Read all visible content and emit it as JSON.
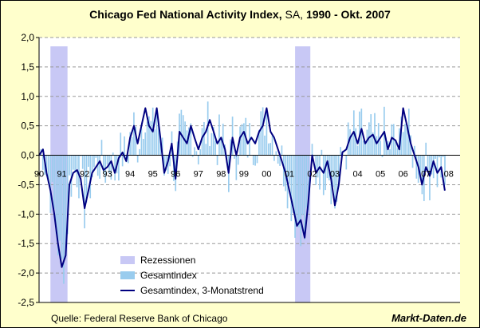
{
  "chart_data": {
    "type": "bar+line",
    "title_parts": [
      "Chicago Fed National Activity Index,",
      " SA,",
      " 1990 - Okt. 2007"
    ],
    "ylim": [
      -2.5,
      2.0
    ],
    "yticks": [
      "2,0",
      "1,5",
      "1,0",
      "0,5",
      "0,0",
      "-0,5",
      "-1,0",
      "-1,5",
      "-2,0",
      "-2,5"
    ],
    "ytick_values": [
      2.0,
      1.5,
      1.0,
      0.5,
      0.0,
      -0.5,
      -1.0,
      -1.5,
      -2.0,
      -2.5
    ],
    "xlim": [
      1990.0,
      2008.5
    ],
    "xtick_labels": [
      "90",
      "91",
      "92",
      "93",
      "94",
      "95",
      "96",
      "97",
      "98",
      "99",
      "00",
      "01",
      "02",
      "03",
      "04",
      "05",
      "06",
      "07",
      "08"
    ],
    "xtick_years": [
      1990,
      1991,
      1992,
      1993,
      1994,
      1995,
      1996,
      1997,
      1998,
      1999,
      2000,
      2001,
      2002,
      2003,
      2004,
      2005,
      2006,
      2007,
      2008
    ],
    "recessions": [
      [
        1990.5,
        1991.25
      ],
      [
        2001.25,
        2001.92
      ]
    ],
    "trend": [
      [
        1990.0,
        0.0
      ],
      [
        1990.17,
        0.1
      ],
      [
        1990.33,
        -0.3
      ],
      [
        1990.5,
        -0.6
      ],
      [
        1990.67,
        -1.0
      ],
      [
        1990.83,
        -1.5
      ],
      [
        1991.0,
        -1.9
      ],
      [
        1991.17,
        -1.7
      ],
      [
        1991.33,
        -0.5
      ],
      [
        1991.5,
        -0.3
      ],
      [
        1991.67,
        -0.25
      ],
      [
        1991.83,
        -0.4
      ],
      [
        1992.0,
        -0.9
      ],
      [
        1992.17,
        -0.6
      ],
      [
        1992.33,
        -0.3
      ],
      [
        1992.5,
        -0.2
      ],
      [
        1992.67,
        -0.1
      ],
      [
        1992.83,
        -0.25
      ],
      [
        1993.0,
        -0.2
      ],
      [
        1993.17,
        -0.1
      ],
      [
        1993.33,
        -0.3
      ],
      [
        1993.5,
        -0.05
      ],
      [
        1993.67,
        0.05
      ],
      [
        1993.83,
        -0.1
      ],
      [
        1994.0,
        0.3
      ],
      [
        1994.17,
        0.5
      ],
      [
        1994.33,
        0.2
      ],
      [
        1994.5,
        0.5
      ],
      [
        1994.67,
        0.8
      ],
      [
        1994.83,
        0.5
      ],
      [
        1995.0,
        0.4
      ],
      [
        1995.17,
        0.8
      ],
      [
        1995.33,
        0.3
      ],
      [
        1995.5,
        -0.3
      ],
      [
        1995.67,
        -0.1
      ],
      [
        1995.83,
        0.2
      ],
      [
        1996.0,
        -0.4
      ],
      [
        1996.17,
        0.4
      ],
      [
        1996.33,
        0.3
      ],
      [
        1996.5,
        0.2
      ],
      [
        1996.67,
        0.5
      ],
      [
        1996.83,
        0.3
      ],
      [
        1997.0,
        0.1
      ],
      [
        1997.17,
        0.3
      ],
      [
        1997.33,
        0.4
      ],
      [
        1997.5,
        0.6
      ],
      [
        1997.67,
        0.4
      ],
      [
        1997.83,
        0.2
      ],
      [
        1998.0,
        0.3
      ],
      [
        1998.17,
        0.1
      ],
      [
        1998.33,
        -0.3
      ],
      [
        1998.5,
        0.3
      ],
      [
        1998.67,
        0.0
      ],
      [
        1998.83,
        0.3
      ],
      [
        1999.0,
        0.4
      ],
      [
        1999.17,
        0.2
      ],
      [
        1999.33,
        0.3
      ],
      [
        1999.5,
        0.2
      ],
      [
        1999.67,
        0.4
      ],
      [
        1999.83,
        0.5
      ],
      [
        2000.0,
        0.8
      ],
      [
        2000.17,
        0.4
      ],
      [
        2000.33,
        0.3
      ],
      [
        2000.5,
        0.1
      ],
      [
        2000.67,
        -0.1
      ],
      [
        2000.83,
        -0.3
      ],
      [
        2001.0,
        -0.6
      ],
      [
        2001.17,
        -0.9
      ],
      [
        2001.33,
        -1.2
      ],
      [
        2001.5,
        -1.1
      ],
      [
        2001.67,
        -1.4
      ],
      [
        2001.83,
        -0.8
      ],
      [
        2002.0,
        0.0
      ],
      [
        2002.17,
        -0.3
      ],
      [
        2002.33,
        -0.2
      ],
      [
        2002.5,
        -0.3
      ],
      [
        2002.67,
        -0.1
      ],
      [
        2002.83,
        -0.4
      ],
      [
        2003.0,
        -0.85
      ],
      [
        2003.17,
        -0.5
      ],
      [
        2003.33,
        0.05
      ],
      [
        2003.5,
        0.1
      ],
      [
        2003.67,
        0.3
      ],
      [
        2003.83,
        0.4
      ],
      [
        2004.0,
        0.2
      ],
      [
        2004.17,
        0.45
      ],
      [
        2004.33,
        0.2
      ],
      [
        2004.5,
        0.3
      ],
      [
        2004.67,
        0.35
      ],
      [
        2004.83,
        0.2
      ],
      [
        2005.0,
        0.3
      ],
      [
        2005.17,
        0.4
      ],
      [
        2005.33,
        0.1
      ],
      [
        2005.5,
        0.3
      ],
      [
        2005.67,
        0.25
      ],
      [
        2005.83,
        0.1
      ],
      [
        2006.0,
        0.8
      ],
      [
        2006.17,
        0.5
      ],
      [
        2006.33,
        0.2
      ],
      [
        2006.5,
        0.0
      ],
      [
        2006.67,
        -0.2
      ],
      [
        2006.83,
        -0.5
      ],
      [
        2007.0,
        -0.2
      ],
      [
        2007.17,
        -0.35
      ],
      [
        2007.33,
        -0.1
      ],
      [
        2007.5,
        -0.3
      ],
      [
        2007.67,
        -0.2
      ],
      [
        2007.83,
        -0.6
      ]
    ],
    "legend": [
      "Rezessionen",
      "Gesamtindex",
      "Gesamtindex, 3-Monatstrend"
    ],
    "colors": {
      "recession": "#c8c8f5",
      "bars": "#99ccee",
      "trend": "#000080",
      "grid": "#999999",
      "background": "#ffffcc"
    }
  },
  "footer": {
    "source": "Quelle: Federal Reserve Bank of Chicago",
    "brand": "Markt-Daten.de"
  }
}
